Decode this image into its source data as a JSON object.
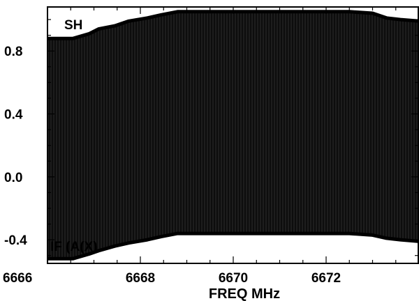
{
  "chart_data": {
    "type": "area",
    "title": "",
    "panel_label": "SH",
    "overlay_label": "IF (A(X)",
    "xlabel": "FREQ MHz",
    "ylabel": "",
    "xlim": [
      6666,
      6674
    ],
    "ylim": [
      -0.55,
      1.08
    ],
    "x_ticks": [
      6666,
      6668,
      6670,
      6672
    ],
    "y_ticks": [
      0.8,
      0.4,
      0.0,
      -0.4
    ],
    "x_tick_labels": [
      "6666",
      "6668",
      "6670",
      "6672"
    ],
    "y_tick_labels": [
      "0.8",
      "0.4",
      "0.0",
      "-0.4"
    ],
    "grid": false,
    "series": [
      {
        "role": "upper envelope",
        "x": [
          6666,
          6666.55,
          6666.9,
          6667.1,
          6667.45,
          6667.75,
          6668.15,
          6668.45,
          6668.8,
          6669.5,
          6670.5,
          6671.5,
          6672.5,
          6673.0,
          6673.3,
          6673.6,
          6674
        ],
        "y": [
          0.88,
          0.88,
          0.91,
          0.94,
          0.96,
          0.99,
          1.01,
          1.03,
          1.05,
          1.05,
          1.05,
          1.05,
          1.05,
          1.04,
          1.01,
          1.0,
          0.99
        ]
      },
      {
        "role": "lower envelope",
        "x": [
          6666,
          6666.55,
          6666.9,
          6667.1,
          6667.45,
          6667.75,
          6668.15,
          6668.45,
          6668.8,
          6669.5,
          6670.5,
          6671.5,
          6672.5,
          6673.0,
          6673.3,
          6673.6,
          6674
        ],
        "y": [
          -0.52,
          -0.52,
          -0.49,
          -0.47,
          -0.44,
          -0.42,
          -0.4,
          -0.38,
          -0.36,
          -0.36,
          -0.36,
          -0.36,
          -0.36,
          -0.37,
          -0.39,
          -0.4,
          -0.41
        ]
      }
    ]
  }
}
